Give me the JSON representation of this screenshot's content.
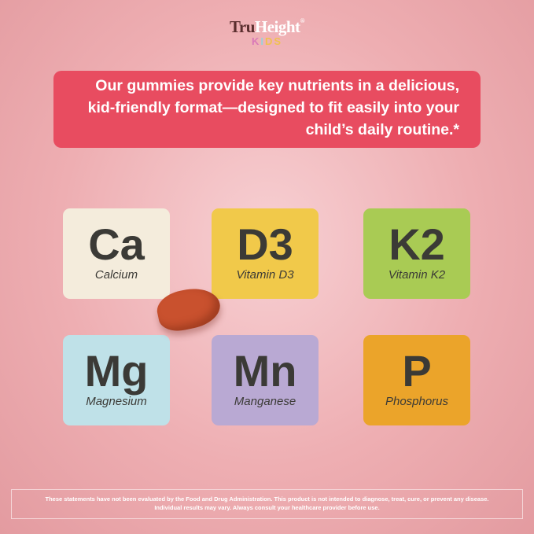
{
  "logo": {
    "brand_part1": "Tru",
    "brand_part2": "Height",
    "registered": "®",
    "sub": [
      "K",
      "I",
      "D",
      "S"
    ],
    "sub_colors": [
      "#d979b8",
      "#9ad2d8",
      "#f0c050",
      "#f0c050"
    ]
  },
  "banner": {
    "text": "Our gummies provide key nutrients in a delicious, kid-friendly format—designed to fit easily into your child’s daily routine.*"
  },
  "nutrients": [
    {
      "symbol": "Ca",
      "name": "Calcium",
      "color": "#f4ecdc"
    },
    {
      "symbol": "D3",
      "name": "Vitamin D3",
      "color": "#f1c94a"
    },
    {
      "symbol": "K2",
      "name": "Vitamin K2",
      "color": "#a9cb54"
    },
    {
      "symbol": "Mg",
      "name": "Magnesium",
      "color": "#bfe1e8"
    },
    {
      "symbol": "Mn",
      "name": "Manganese",
      "color": "#b9a9d3"
    },
    {
      "symbol": "P",
      "name": "Phosphorus",
      "color": "#eba42a"
    }
  ],
  "disclaimer": {
    "line1": "These statements have not been evaluated by the Food and Drug Administration. This product is not intended to diagnose, treat, cure, or prevent any disease.",
    "line2": "Individual results may vary. Always consult your healthcare provider before use."
  }
}
